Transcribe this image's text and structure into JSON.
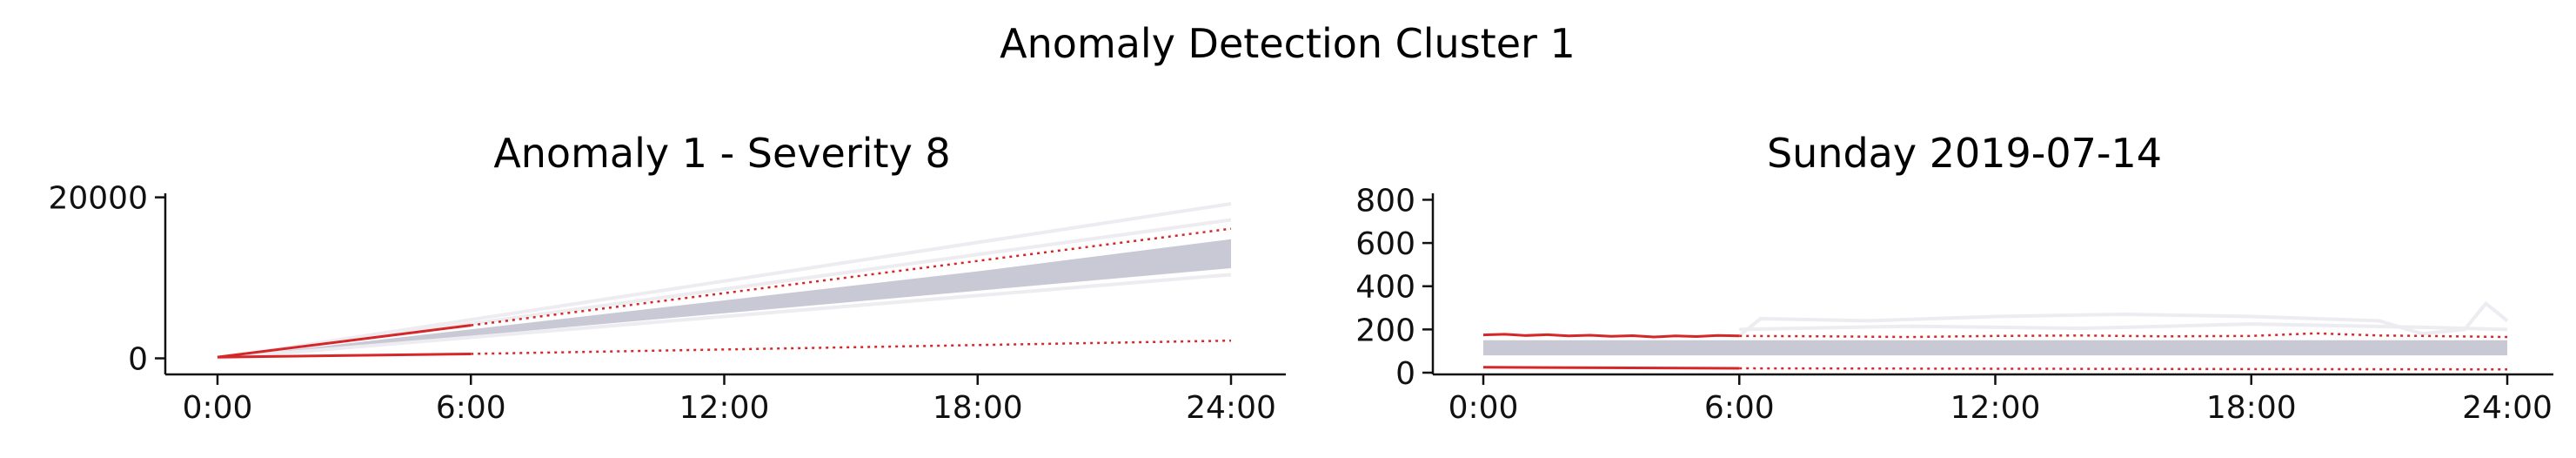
{
  "figure": {
    "suptitle": "Anomaly Detection Cluster 1"
  },
  "colors": {
    "anomaly": "#d62728",
    "band": "#c9c9d6",
    "background_lines": "#ececf1",
    "axis": "#111111"
  },
  "chart_data": [
    {
      "type": "line",
      "title": "Anomaly 1 - Severity 8",
      "xlabel": "",
      "ylabel": "",
      "xlim": [
        0,
        24
      ],
      "ylim": [
        -700,
        20500
      ],
      "x_ticks": [
        0,
        6,
        12,
        18,
        24
      ],
      "x_tick_labels": [
        "0:00",
        "6:00",
        "12:00",
        "18:00",
        "24:00"
      ],
      "y_ticks": [
        0,
        20000
      ],
      "y_tick_labels": [
        "0",
        "20000"
      ],
      "grid": false,
      "legend": "none",
      "series": [
        {
          "role": "background-band",
          "x": [
            0,
            6,
            12,
            18,
            24
          ],
          "lower": [
            0,
            2800,
            5600,
            8400,
            11200
          ],
          "upper": [
            0,
            3600,
            7200,
            10800,
            14800
          ]
        },
        {
          "role": "background-line",
          "x": [
            0,
            24
          ],
          "y": [
            0,
            19200
          ]
        },
        {
          "role": "background-line",
          "x": [
            0,
            24
          ],
          "y": [
            0,
            17200
          ]
        },
        {
          "role": "background-line",
          "x": [
            0,
            24
          ],
          "y": [
            0,
            10400
          ]
        },
        {
          "role": "anomaly-solid",
          "x": [
            0,
            6
          ],
          "y": [
            150,
            4100
          ]
        },
        {
          "role": "anomaly-solid",
          "x": [
            0,
            6
          ],
          "y": [
            150,
            550
          ]
        },
        {
          "role": "anomaly-dotted",
          "x": [
            6,
            24
          ],
          "y": [
            4100,
            16100
          ]
        },
        {
          "role": "anomaly-dotted",
          "x": [
            6,
            24
          ],
          "y": [
            550,
            2200
          ]
        }
      ]
    },
    {
      "type": "line",
      "title": "Sunday 2019-07-14",
      "xlabel": "",
      "ylabel": "",
      "xlim": [
        0,
        24
      ],
      "ylim": [
        0,
        830
      ],
      "x_ticks": [
        0,
        6,
        12,
        18,
        24
      ],
      "x_tick_labels": [
        "0:00",
        "6:00",
        "12:00",
        "18:00",
        "24:00"
      ],
      "y_ticks": [
        0,
        200,
        400,
        600,
        800
      ],
      "y_tick_labels": [
        "0",
        "200",
        "400",
        "600",
        "800"
      ],
      "grid": false,
      "legend": "none",
      "series": [
        {
          "role": "background-band",
          "x": [
            0,
            24
          ],
          "lower": [
            80,
            80
          ],
          "upper": [
            150,
            150
          ]
        },
        {
          "role": "background-line",
          "x": [
            6,
            6.5,
            9,
            12,
            15,
            18,
            21,
            22,
            23,
            23.5,
            24
          ],
          "y": [
            170,
            250,
            240,
            260,
            270,
            260,
            240,
            180,
            200,
            320,
            240
          ]
        },
        {
          "role": "background-line",
          "x": [
            6,
            10,
            14,
            18,
            22,
            24
          ],
          "y": [
            200,
            215,
            205,
            225,
            210,
            200
          ]
        },
        {
          "role": "anomaly-solid",
          "x": [
            0,
            0.5,
            1,
            1.5,
            2,
            2.5,
            3,
            3.5,
            4,
            4.5,
            5,
            5.5,
            6
          ],
          "y": [
            175,
            178,
            172,
            176,
            170,
            173,
            168,
            171,
            165,
            170,
            167,
            172,
            170
          ]
        },
        {
          "role": "anomaly-solid",
          "x": [
            0,
            6
          ],
          "y": [
            25,
            20
          ]
        },
        {
          "role": "anomaly-dotted",
          "x": [
            6,
            8,
            10,
            12,
            14,
            16,
            18,
            19.5,
            21,
            22,
            24
          ],
          "y": [
            170,
            168,
            165,
            170,
            172,
            168,
            170,
            182,
            172,
            170,
            165
          ]
        },
        {
          "role": "anomaly-dotted",
          "x": [
            6,
            24
          ],
          "y": [
            20,
            15
          ]
        }
      ]
    }
  ]
}
